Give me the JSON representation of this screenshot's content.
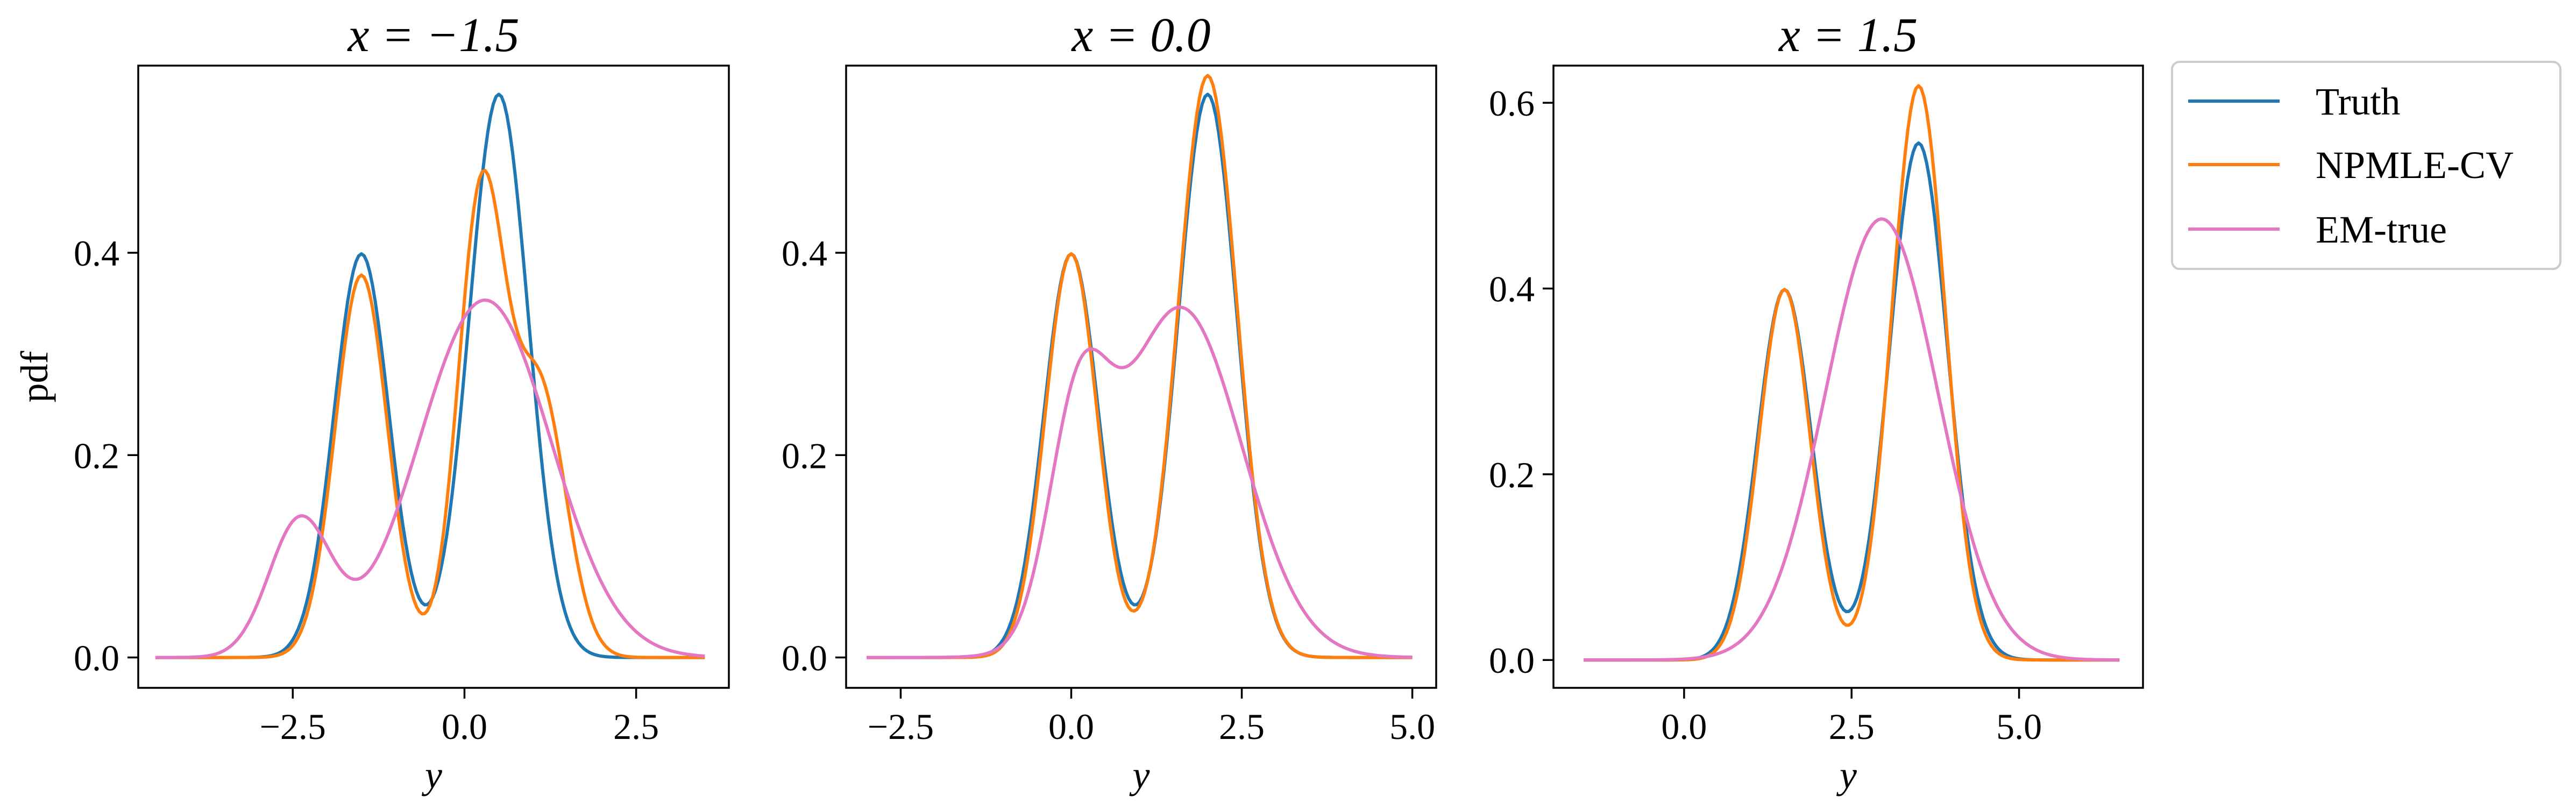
{
  "chart_data": [
    {
      "type": "line",
      "title": "x = −1.5",
      "xlabel": "y",
      "ylabel": "pdf",
      "xlim": [
        -4.75,
        3.85
      ],
      "ylim": [
        -0.03,
        0.585
      ],
      "xticks": [
        -2.5,
        0.0,
        2.5
      ],
      "xtick_labels": [
        "−2.5",
        "0.0",
        "2.5"
      ],
      "yticks": [
        0.0,
        0.2,
        0.4
      ],
      "ytick_labels": [
        "0.0",
        "0.2",
        "0.4"
      ],
      "x_range": [
        -4.5,
        3.5
      ],
      "series": [
        {
          "name": "Truth",
          "components": [
            [
              0.4,
              -1.5,
              0.4
            ],
            [
              0.6,
              0.5,
              0.43
            ]
          ]
        },
        {
          "name": "NPMLE-CV",
          "components": [
            [
              0.36,
              -1.5,
              0.38
            ],
            [
              0.39,
              0.25,
              0.34
            ],
            [
              0.25,
              1.1,
              0.38
            ]
          ]
        },
        {
          "name": "EM-true",
          "components": [
            [
              0.15,
              -2.4,
              0.45
            ],
            [
              0.85,
              0.3,
              0.96
            ]
          ]
        }
      ]
    },
    {
      "type": "line",
      "title": "x = 0.0",
      "xlabel": "y",
      "ylabel": "",
      "xlim": [
        -3.3,
        5.35
      ],
      "ylim": [
        -0.03,
        0.585
      ],
      "xticks": [
        -2.5,
        0.0,
        2.5,
        5.0
      ],
      "xtick_labels": [
        "−2.5",
        "0.0",
        "2.5",
        "5.0"
      ],
      "yticks": [
        0.0,
        0.2,
        0.4
      ],
      "ytick_labels": [
        "0.0",
        "0.2",
        "0.4"
      ],
      "x_range": [
        -3.0,
        5.0
      ],
      "series": [
        {
          "name": "Truth",
          "components": [
            [
              0.4,
              0.0,
              0.4
            ],
            [
              0.6,
              2.0,
              0.43
            ]
          ]
        },
        {
          "name": "NPMLE-CV",
          "components": [
            [
              0.38,
              0.0,
              0.38
            ],
            [
              0.62,
              2.0,
              0.43
            ]
          ]
        },
        {
          "name": "EM-true",
          "components": [
            [
              0.22,
              0.1,
              0.43
            ],
            [
              0.78,
              1.6,
              0.9
            ]
          ]
        }
      ]
    },
    {
      "type": "line",
      "title": "x = 1.5",
      "xlabel": "y",
      "ylabel": "",
      "xlim": [
        -1.95,
        6.85
      ],
      "ylim": [
        -0.03,
        0.64
      ],
      "xticks": [
        0.0,
        2.5,
        5.0
      ],
      "xtick_labels": [
        "0.0",
        "2.5",
        "5.0"
      ],
      "yticks": [
        0.0,
        0.2,
        0.4,
        0.6
      ],
      "ytick_labels": [
        "0.0",
        "0.2",
        "0.4",
        "0.6"
      ],
      "x_range": [
        -1.5,
        6.5
      ],
      "series": [
        {
          "name": "Truth",
          "components": [
            [
              0.4,
              1.5,
              0.4
            ],
            [
              0.6,
              3.5,
              0.43
            ]
          ]
        },
        {
          "name": "NPMLE-CV",
          "components": [
            [
              0.38,
              1.5,
              0.38
            ],
            [
              0.62,
              3.5,
              0.4
            ]
          ]
        },
        {
          "name": "EM-true",
          "components": [
            [
              1.0,
              2.95,
              0.84
            ]
          ]
        }
      ]
    }
  ],
  "legend": {
    "placement": "right",
    "items": [
      {
        "label": "Truth",
        "color": "#1f77b4"
      },
      {
        "label": "NPMLE-CV",
        "color": "#ff7f0e"
      },
      {
        "label": "EM-true",
        "color": "#e377c2"
      }
    ]
  },
  "colors": {
    "Truth": "#1f77b4",
    "NPMLE-CV": "#ff7f0e",
    "EM-true": "#e377c2"
  }
}
